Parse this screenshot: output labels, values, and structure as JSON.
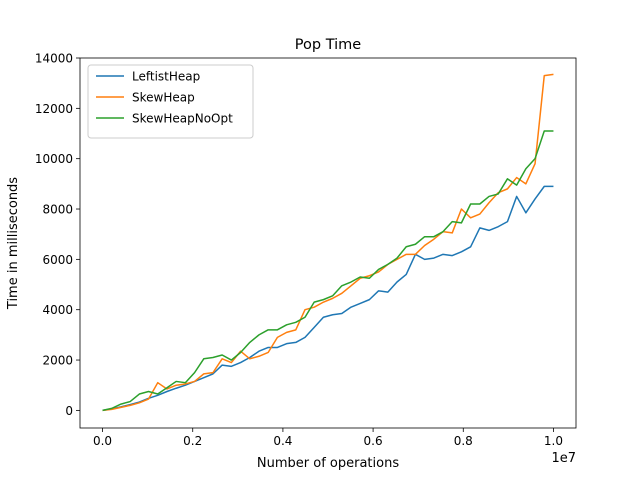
{
  "chart_data": {
    "type": "line",
    "title": "Pop Time",
    "xlabel": "Number of operations",
    "ylabel": "Time in milliseconds",
    "x_multiplier_label": "1e7",
    "xlim": [
      -0.05,
      1.05
    ],
    "ylim": [
      -700,
      14000
    ],
    "x_ticks": [
      0.0,
      0.2,
      0.4,
      0.6,
      0.8,
      1.0
    ],
    "x_tick_labels": [
      "0.0",
      "0.2",
      "0.4",
      "0.6",
      "0.8",
      "1.0"
    ],
    "y_ticks": [
      0,
      2000,
      4000,
      6000,
      8000,
      10000,
      12000,
      14000
    ],
    "y_tick_labels": [
      "0",
      "2000",
      "4000",
      "6000",
      "8000",
      "10000",
      "12000",
      "14000"
    ],
    "grid": false,
    "legend_position": "top-left",
    "x": [
      0.0,
      0.0204,
      0.0408,
      0.0612,
      0.0816,
      0.102,
      0.1224,
      0.1429,
      0.1633,
      0.1837,
      0.2041,
      0.2245,
      0.2449,
      0.2653,
      0.2857,
      0.3061,
      0.3265,
      0.3469,
      0.3673,
      0.3878,
      0.4082,
      0.4286,
      0.449,
      0.4694,
      0.4898,
      0.5102,
      0.5306,
      0.551,
      0.5714,
      0.5918,
      0.6122,
      0.6327,
      0.6531,
      0.6735,
      0.6939,
      0.7143,
      0.7347,
      0.7551,
      0.7755,
      0.7959,
      0.8163,
      0.8367,
      0.8571,
      0.8776,
      0.898,
      0.9184,
      0.9388,
      0.9592,
      0.9796,
      1.0
    ],
    "series": [
      {
        "name": "LeftistHeap",
        "color": "#1f77b4",
        "values": [
          0,
          60,
          140,
          230,
          330,
          480,
          600,
          750,
          880,
          1000,
          1150,
          1300,
          1450,
          1800,
          1750,
          1900,
          2100,
          2350,
          2500,
          2500,
          2650,
          2700,
          2900,
          3300,
          3700,
          3800,
          3850,
          4100,
          4250,
          4400,
          4750,
          4700,
          5100,
          5400,
          6200,
          6000,
          6050,
          6200,
          6150,
          6300,
          6500,
          7250,
          7150,
          7300,
          7500,
          8500,
          7850,
          8400,
          8900,
          8900
        ]
      },
      {
        "name": "SkewHeap",
        "color": "#ff7f0e",
        "values": [
          0,
          40,
          120,
          200,
          300,
          450,
          1100,
          850,
          1000,
          1050,
          1150,
          1450,
          1500,
          2050,
          1900,
          2350,
          2050,
          2150,
          2300,
          2900,
          3100,
          3200,
          4000,
          4100,
          4300,
          4450,
          4650,
          4950,
          5250,
          5350,
          5500,
          5800,
          6000,
          6200,
          6200,
          6550,
          6800,
          7100,
          7050,
          8000,
          7650,
          7800,
          8250,
          8650,
          8800,
          9250,
          9000,
          9800,
          13300,
          13350
        ]
      },
      {
        "name": "SkewHeapNoOpt",
        "color": "#2ca02c",
        "values": [
          0,
          80,
          250,
          350,
          650,
          750,
          650,
          900,
          1150,
          1100,
          1500,
          2050,
          2100,
          2200,
          2000,
          2300,
          2700,
          3000,
          3200,
          3200,
          3400,
          3500,
          3700,
          4300,
          4400,
          4550,
          4950,
          5100,
          5300,
          5250,
          5600,
          5800,
          6050,
          6500,
          6600,
          6900,
          6900,
          7100,
          7500,
          7450,
          8200,
          8200,
          8500,
          8600,
          9200,
          8950,
          9600,
          10000,
          11100,
          11100
        ]
      }
    ]
  }
}
